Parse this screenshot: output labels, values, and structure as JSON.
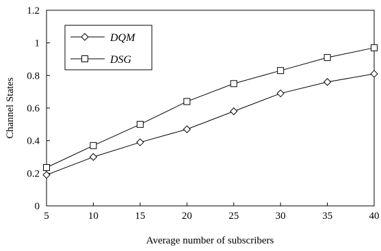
{
  "chart_data": {
    "type": "line",
    "title": "",
    "xlabel": "Average number of subscribers",
    "ylabel": "Channel States",
    "x": [
      5,
      10,
      15,
      20,
      25,
      30,
      35,
      40
    ],
    "xlim": [
      5,
      40
    ],
    "ylim": [
      0,
      1.2
    ],
    "x_ticks": [
      "5",
      "10",
      "15",
      "20",
      "25",
      "30",
      "35",
      "40"
    ],
    "y_ticks": [
      "0",
      "0.2",
      "0.4",
      "0.6",
      "0.8",
      "1",
      "1.2"
    ],
    "grid": false,
    "legend_position": "top-left",
    "series": [
      {
        "name": "DQM",
        "marker": "diamond",
        "values": [
          0.19,
          0.3,
          0.39,
          0.47,
          0.58,
          0.69,
          0.76,
          0.81
        ]
      },
      {
        "name": "DSG",
        "marker": "square",
        "values": [
          0.235,
          0.37,
          0.5,
          0.64,
          0.75,
          0.83,
          0.91,
          0.97
        ]
      }
    ]
  }
}
